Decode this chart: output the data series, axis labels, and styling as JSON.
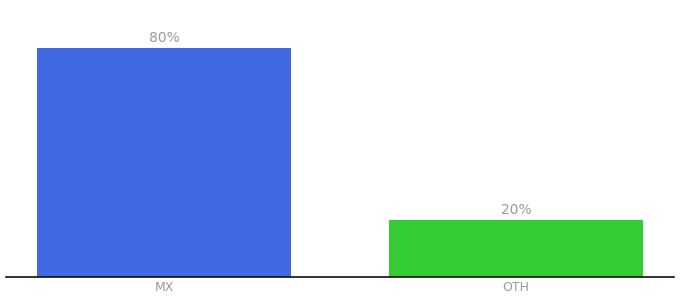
{
  "categories": [
    "MX",
    "OTH"
  ],
  "values": [
    80,
    20
  ],
  "bar_colors": [
    "#4169E1",
    "#33CC33"
  ],
  "labels": [
    "80%",
    "20%"
  ],
  "background_color": "#ffffff",
  "text_color": "#999999",
  "label_fontsize": 10,
  "tick_fontsize": 9,
  "ylim": [
    0,
    95
  ],
  "bar_width": 0.72,
  "xlim": [
    -0.45,
    1.45
  ]
}
